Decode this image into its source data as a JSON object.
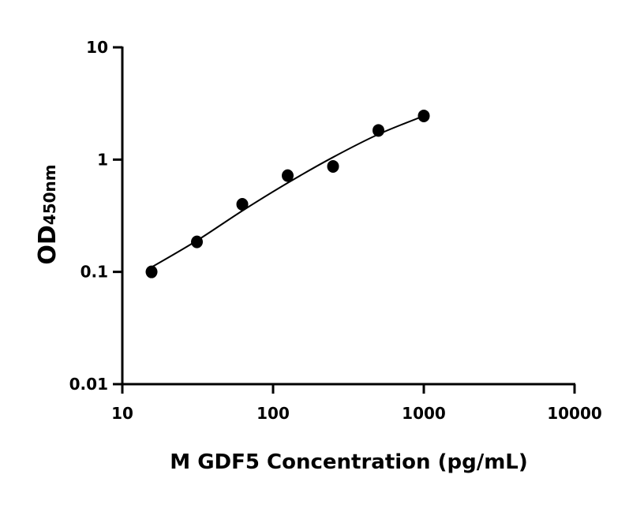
{
  "chart_data": {
    "type": "scatter",
    "title": "",
    "xlabel": "M GDF5 Concentration (pg/mL)",
    "ylabel_main": "OD",
    "ylabel_sub": "450nm",
    "x_scale": "log",
    "y_scale": "log",
    "xlim": [
      10,
      10000
    ],
    "ylim": [
      0.01,
      10
    ],
    "x_ticks": [
      10,
      100,
      1000,
      10000
    ],
    "x_tick_labels": [
      "10",
      "100",
      "1000",
      "10000"
    ],
    "y_ticks": [
      0.01,
      0.1,
      1,
      10
    ],
    "y_tick_labels": [
      "0.01",
      "0.1",
      "1",
      "10"
    ],
    "grid": false,
    "legend": "none",
    "points": [
      {
        "x": 15.625,
        "y": 0.1
      },
      {
        "x": 31.25,
        "y": 0.185
      },
      {
        "x": 62.5,
        "y": 0.4
      },
      {
        "x": 125,
        "y": 0.72
      },
      {
        "x": 250,
        "y": 0.87
      },
      {
        "x": 500,
        "y": 1.82
      },
      {
        "x": 1000,
        "y": 2.45
      }
    ],
    "fit_curve": [
      {
        "x": 15.625,
        "y": 0.11
      },
      {
        "x": 31.25,
        "y": 0.19
      },
      {
        "x": 62.5,
        "y": 0.35
      },
      {
        "x": 125,
        "y": 0.62
      },
      {
        "x": 250,
        "y": 1.05
      },
      {
        "x": 500,
        "y": 1.68
      },
      {
        "x": 1000,
        "y": 2.45
      }
    ],
    "colors": {
      "points": "#000000",
      "line": "#000000",
      "axes": "#000000"
    }
  }
}
